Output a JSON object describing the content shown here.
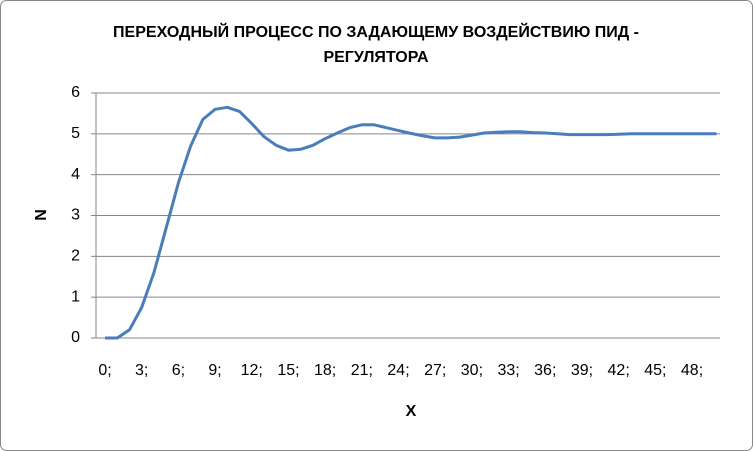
{
  "chart_data": {
    "type": "line",
    "title": "ПЕРЕХОДНЫЙ ПРОЦЕСС ПО ЗАДАЮЩЕМУ ВОЗДЕЙСТВИЮ ПИД - РЕГУЛЯТОРА",
    "x_label": "X",
    "y_label": "N",
    "categories": [
      "0;",
      null,
      null,
      "3;",
      null,
      null,
      "6;",
      null,
      null,
      "9;",
      null,
      null,
      "12;",
      null,
      null,
      "15;",
      null,
      null,
      "18;",
      null,
      null,
      "21;",
      null,
      null,
      "24;",
      null,
      null,
      "27;",
      null,
      null,
      "30;",
      null,
      null,
      "33;",
      null,
      null,
      "36;",
      null,
      null,
      "39;",
      null,
      null,
      "42;",
      null,
      null,
      "45;",
      null,
      null,
      "48;",
      null,
      null
    ],
    "series": [
      {
        "name": "N",
        "color": "#4a7ebb",
        "values": [
          0,
          0,
          0.2,
          0.75,
          1.6,
          2.7,
          3.8,
          4.7,
          5.35,
          5.6,
          5.65,
          5.55,
          5.25,
          4.93,
          4.72,
          4.6,
          4.62,
          4.72,
          4.88,
          5.02,
          5.15,
          5.22,
          5.22,
          5.15,
          5.08,
          5.01,
          4.95,
          4.9,
          4.9,
          4.92,
          4.97,
          5.02,
          5.04,
          5.05,
          5.05,
          5.03,
          5.02,
          5.0,
          4.98,
          4.98,
          4.98,
          4.98,
          4.99,
          5.0,
          5.0,
          5.0,
          5.0,
          5.0,
          5.0,
          5.0,
          5.0
        ]
      }
    ],
    "ylim": [
      0,
      6
    ],
    "yticks": [
      0,
      1,
      2,
      3,
      4,
      5,
      6
    ],
    "grid": true,
    "legend": false
  }
}
